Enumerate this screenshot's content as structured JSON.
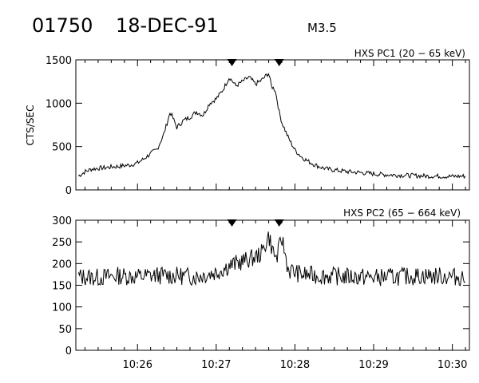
{
  "header": {
    "event_id": "01750",
    "date": "18-DEC-91",
    "flare_class": "M3.5"
  },
  "chart_data": [
    {
      "type": "line",
      "panel_label": "HXS PC1 (20 − 65 keV)",
      "ylabel": "CTS/SEC",
      "xlabel": "",
      "xlim": [
        "10:25:13",
        "10:30:13"
      ],
      "ylim": [
        0,
        1500
      ],
      "yticks": [
        0,
        500,
        1000,
        1500
      ],
      "interval_markers": [
        "10:27:12",
        "10:27:48"
      ],
      "line_color": "#000000",
      "x": [
        "10:25:15",
        "10:25:20",
        "10:25:25",
        "10:25:30",
        "10:25:35",
        "10:25:40",
        "10:25:45",
        "10:25:50",
        "10:25:55",
        "10:26:00",
        "10:26:05",
        "10:26:10",
        "10:26:15",
        "10:26:20",
        "10:26:25",
        "10:26:30",
        "10:26:35",
        "10:26:40",
        "10:26:45",
        "10:26:50",
        "10:26:55",
        "10:27:00",
        "10:27:05",
        "10:27:10",
        "10:27:15",
        "10:27:20",
        "10:27:25",
        "10:27:30",
        "10:27:35",
        "10:27:40",
        "10:27:42",
        "10:27:45",
        "10:27:48",
        "10:27:50",
        "10:27:55",
        "10:28:00",
        "10:28:05",
        "10:28:10",
        "10:28:15",
        "10:28:20",
        "10:28:25",
        "10:28:30",
        "10:28:40",
        "10:28:50",
        "10:29:00",
        "10:29:10",
        "10:29:20",
        "10:29:30",
        "10:29:40",
        "10:29:50",
        "10:30:00",
        "10:30:10"
      ],
      "values": [
        160,
        210,
        240,
        250,
        255,
        265,
        270,
        280,
        290,
        310,
        360,
        420,
        470,
        640,
        900,
        720,
        800,
        840,
        900,
        860,
        1000,
        1050,
        1150,
        1300,
        1200,
        1250,
        1300,
        1220,
        1270,
        1350,
        1200,
        1150,
        900,
        780,
        600,
        460,
        380,
        330,
        290,
        260,
        240,
        230,
        210,
        200,
        185,
        175,
        170,
        165,
        160,
        158,
        155,
        160
      ]
    },
    {
      "type": "line",
      "panel_label": "HXS PC2 (65 − 664 keV)",
      "ylabel": "",
      "xlabel": "",
      "xlim": [
        "10:25:13",
        "10:30:13"
      ],
      "ylim": [
        0,
        300
      ],
      "yticks": [
        0,
        50,
        100,
        150,
        200,
        250,
        300
      ],
      "xticks": [
        "10:26",
        "10:27",
        "10:28",
        "10:29",
        "10:30"
      ],
      "interval_markers": [
        "10:27:12",
        "10:27:48"
      ],
      "line_color": "#000000",
      "x": [
        "10:25:15",
        "10:25:30",
        "10:25:45",
        "10:26:00",
        "10:26:15",
        "10:26:30",
        "10:26:45",
        "10:27:00",
        "10:27:10",
        "10:27:20",
        "10:27:30",
        "10:27:35",
        "10:27:40",
        "10:27:43",
        "10:27:46",
        "10:27:50",
        "10:27:55",
        "10:28:05",
        "10:28:20",
        "10:28:40",
        "10:29:00",
        "10:29:20",
        "10:29:40",
        "10:30:00",
        "10:30:10"
      ],
      "values": [
        170,
        168,
        172,
        170,
        173,
        172,
        170,
        180,
        195,
        205,
        215,
        225,
        265,
        230,
        210,
        260,
        185,
        175,
        172,
        170,
        168,
        170,
        172,
        170,
        168
      ]
    }
  ]
}
